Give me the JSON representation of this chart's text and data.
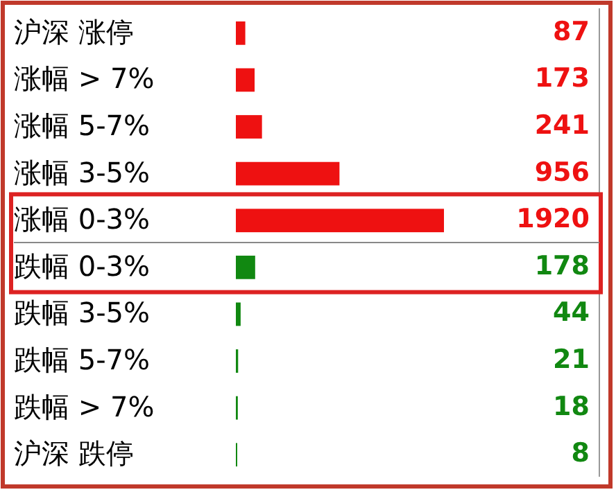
{
  "chart_data": {
    "type": "bar",
    "orientation": "horizontal",
    "categories": [
      "沪深 涨停",
      "涨幅 > 7%",
      "涨幅 5-7%",
      "涨幅 3-5%",
      "涨幅 0-3%",
      "跌幅 0-3%",
      "跌幅 3-5%",
      "跌幅 5-7%",
      "跌幅 > 7%",
      "沪深 跌停"
    ],
    "values": [
      87,
      173,
      241,
      956,
      1920,
      178,
      44,
      21,
      18,
      8
    ],
    "colors": [
      "#ee1111",
      "#ee1111",
      "#ee1111",
      "#ee1111",
      "#ee1111",
      "#118811",
      "#118811",
      "#118811",
      "#118811",
      "#118811"
    ],
    "data_labels": true
  }
}
